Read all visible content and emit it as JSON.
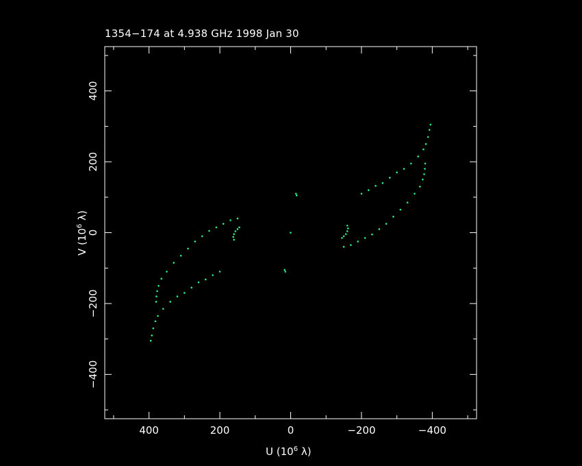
{
  "chart_data": {
    "type": "scatter",
    "title": "1354−174 at 4.938 GHz 1998 Jan 30",
    "xlabel_prefix": "U (10",
    "ylabel_prefix": "V (10",
    "label_exponent": "6",
    "label_suffix": " λ)",
    "xlim": [
      525,
      -525
    ],
    "ylim": [
      -525,
      525
    ],
    "x_ticks": [
      400,
      200,
      0,
      -200,
      -400
    ],
    "x_tick_labels": [
      "400",
      "200",
      "0",
      "−200",
      "−400"
    ],
    "y_ticks": [
      400,
      200,
      0,
      -200,
      -400
    ],
    "y_tick_labels": [
      "400",
      "200",
      "0",
      "−200",
      "−400"
    ],
    "grid": false,
    "point_color": "#2cf08a",
    "axis_color": "#ffffff",
    "background": "#000000",
    "series": [
      {
        "points": [
          [
            395,
            -305
          ],
          [
            392,
            -290
          ],
          [
            388,
            -270
          ],
          [
            382,
            -250
          ],
          [
            375,
            -235
          ],
          [
            360,
            -215
          ],
          [
            340,
            -195
          ],
          [
            320,
            -180
          ],
          [
            300,
            -170
          ],
          [
            280,
            -155
          ],
          [
            260,
            -140
          ],
          [
            240,
            -132
          ],
          [
            220,
            -120
          ],
          [
            200,
            -110
          ]
        ]
      },
      {
        "points": [
          [
            -395,
            305
          ],
          [
            -392,
            290
          ],
          [
            -388,
            270
          ],
          [
            -382,
            250
          ],
          [
            -375,
            235
          ],
          [
            -360,
            215
          ],
          [
            -340,
            195
          ],
          [
            -320,
            180
          ],
          [
            -300,
            170
          ],
          [
            -280,
            155
          ],
          [
            -260,
            140
          ],
          [
            -240,
            132
          ],
          [
            -220,
            120
          ],
          [
            -200,
            110
          ]
        ]
      },
      {
        "points": [
          [
            380,
            -195
          ],
          [
            379,
            -180
          ],
          [
            377,
            -165
          ],
          [
            373,
            -150
          ],
          [
            365,
            -130
          ],
          [
            350,
            -110
          ],
          [
            330,
            -85
          ],
          [
            310,
            -65
          ],
          [
            290,
            -45
          ],
          [
            270,
            -25
          ],
          [
            250,
            -10
          ],
          [
            230,
            5
          ],
          [
            210,
            15
          ],
          [
            190,
            25
          ],
          [
            170,
            35
          ],
          [
            150,
            40
          ]
        ]
      },
      {
        "points": [
          [
            -380,
            195
          ],
          [
            -379,
            180
          ],
          [
            -377,
            165
          ],
          [
            -373,
            150
          ],
          [
            -365,
            130
          ],
          [
            -350,
            110
          ],
          [
            -330,
            85
          ],
          [
            -310,
            65
          ],
          [
            -290,
            45
          ],
          [
            -270,
            25
          ],
          [
            -250,
            10
          ],
          [
            -230,
            -5
          ],
          [
            -210,
            -15
          ],
          [
            -190,
            -25
          ],
          [
            -170,
            -35
          ],
          [
            -150,
            -40
          ]
        ]
      },
      {
        "points": [
          [
            160,
            -20
          ],
          [
            162,
            -12
          ],
          [
            160,
            -4
          ],
          [
            156,
            4
          ],
          [
            150,
            10
          ],
          [
            145,
            15
          ]
        ]
      },
      {
        "points": [
          [
            -160,
            20
          ],
          [
            -162,
            12
          ],
          [
            -160,
            4
          ],
          [
            -156,
            -4
          ],
          [
            -150,
            -10
          ],
          [
            -145,
            -15
          ]
        ]
      },
      {
        "points": [
          [
            -15,
            110
          ],
          [
            -17,
            105
          ]
        ]
      },
      {
        "points": [
          [
            15,
            -110
          ],
          [
            17,
            -105
          ]
        ]
      },
      {
        "points": [
          [
            0,
            0
          ]
        ]
      }
    ]
  }
}
